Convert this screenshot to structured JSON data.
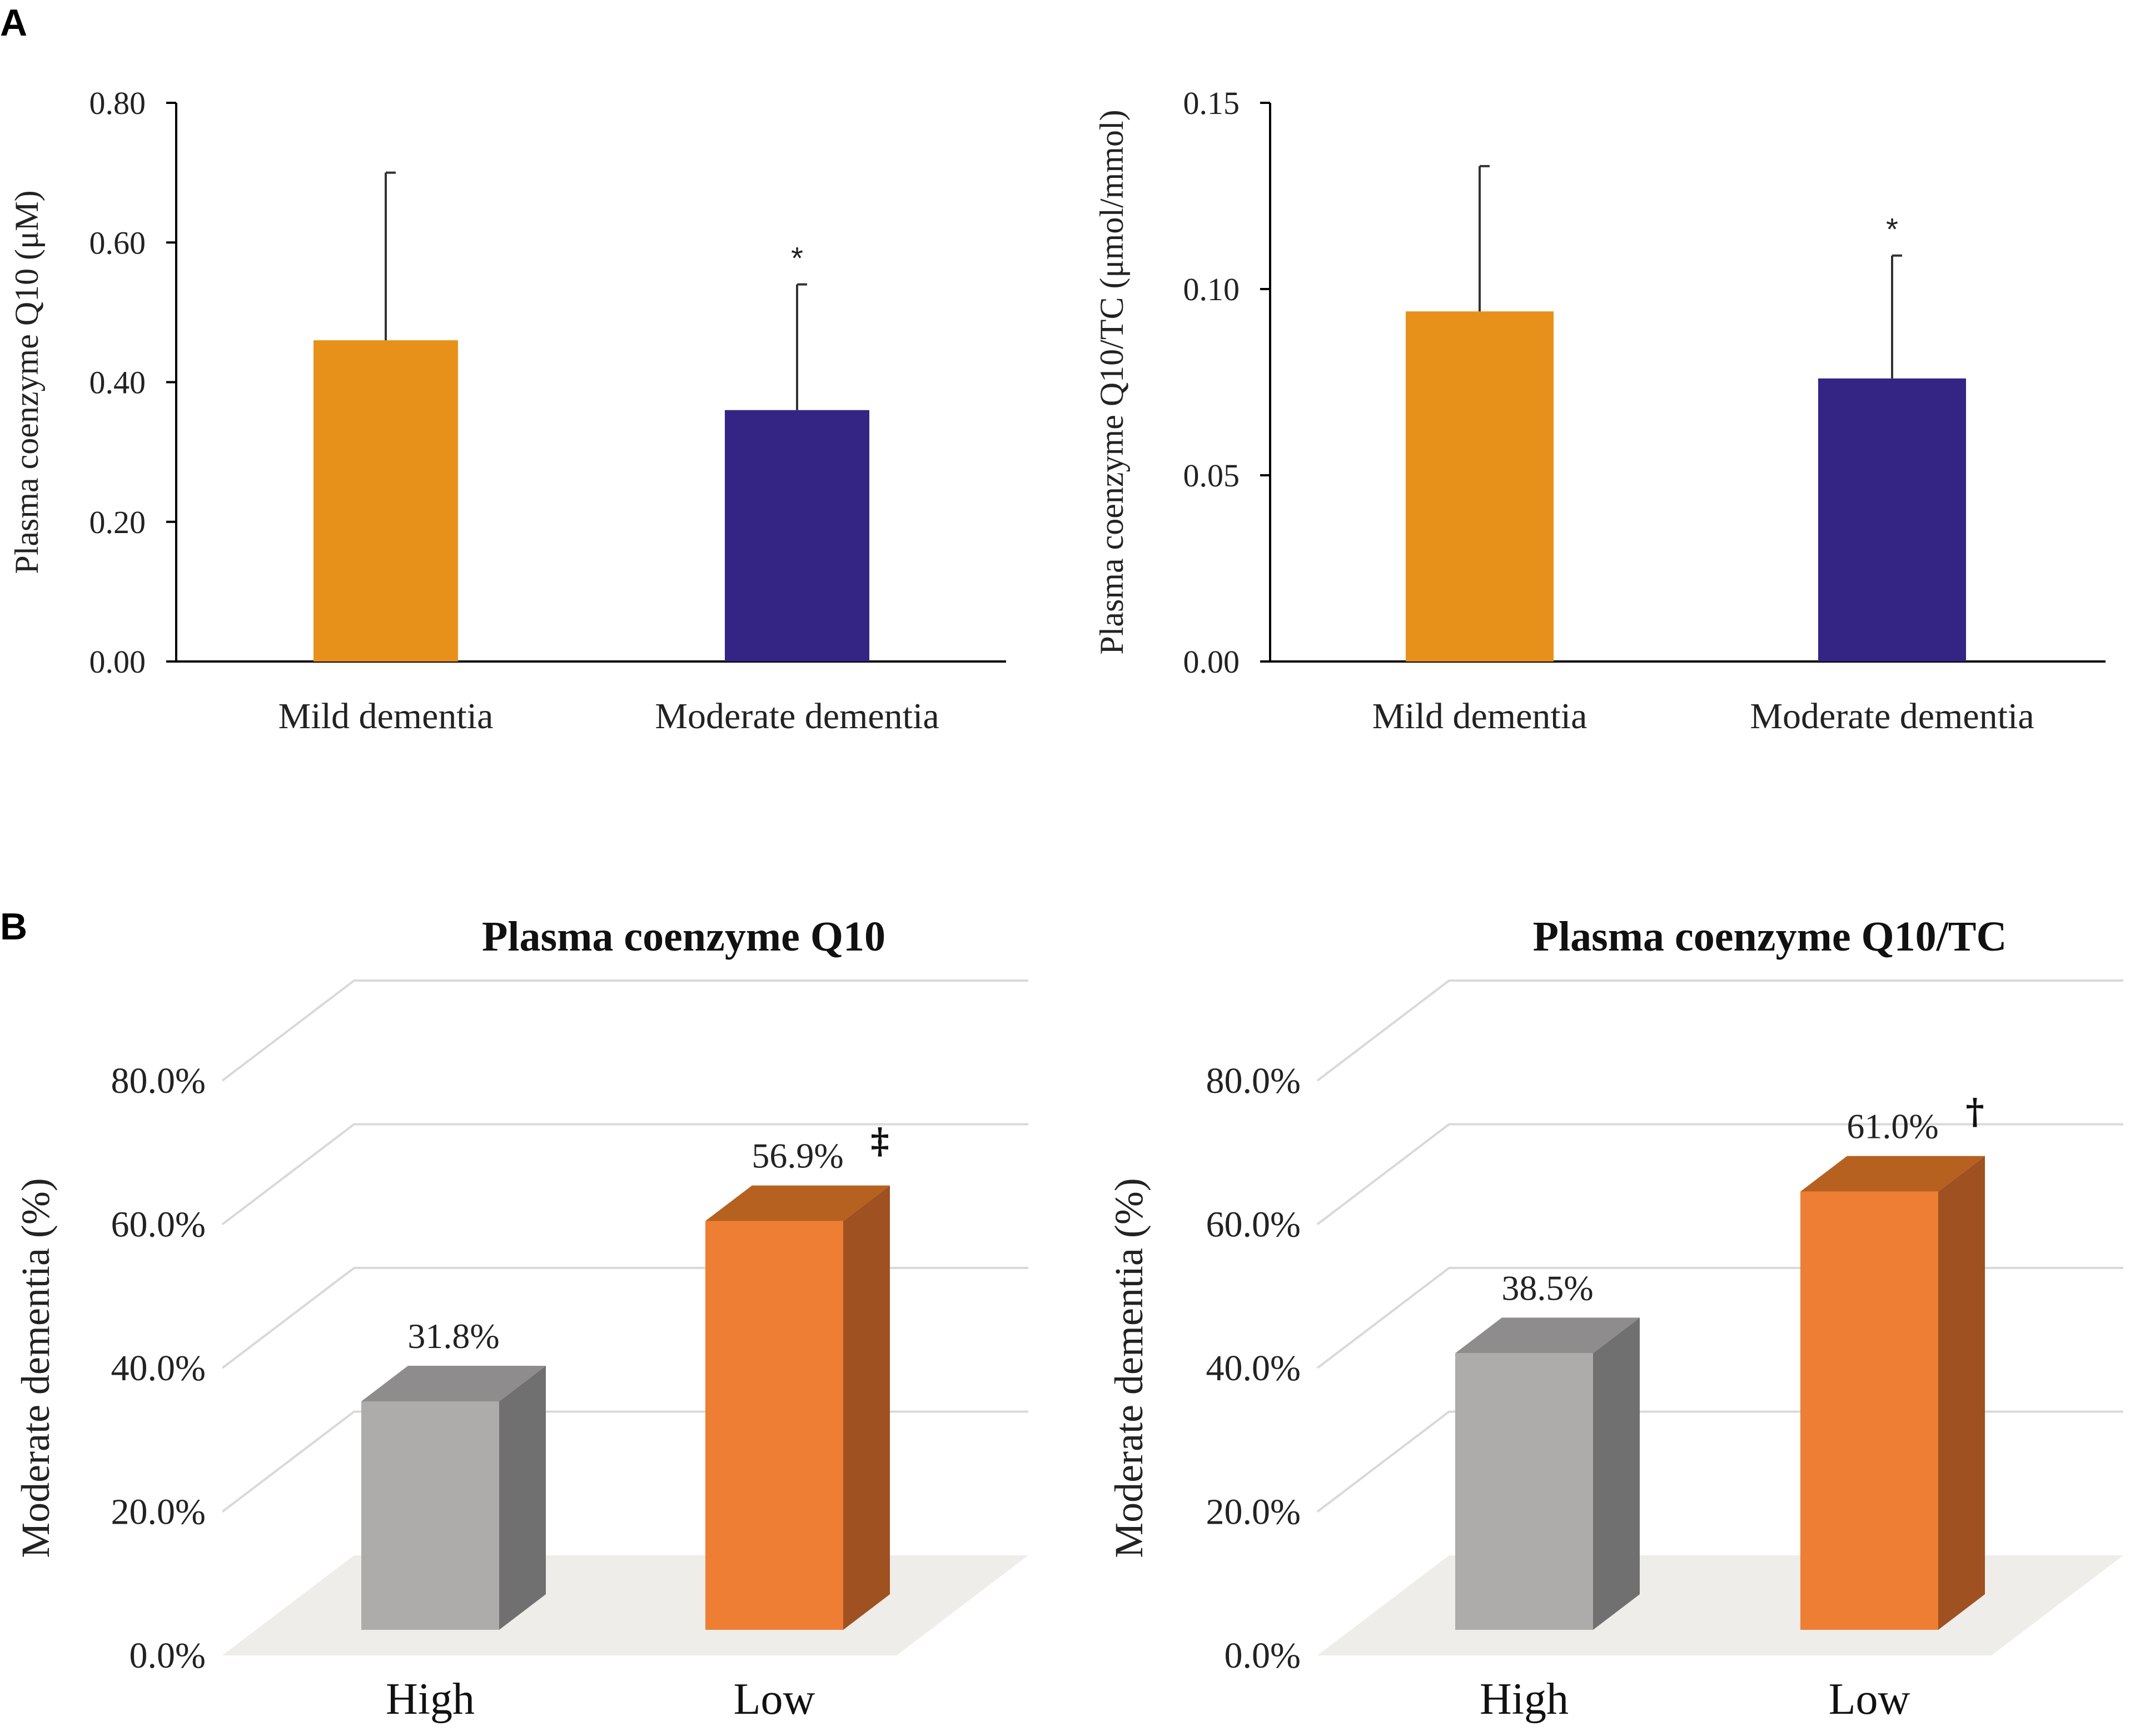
{
  "panels": {
    "a_label": "A",
    "b_label": "B"
  },
  "colors": {
    "mild": "#E8911A",
    "moderate": "#342584",
    "high_front": "#AEACAB",
    "high_side": "#717071",
    "high_top": "#8E8C8C",
    "low_front": "#EE7E33",
    "low_side": "#9F5121",
    "low_top": "#B6611F",
    "grid": "#D9D9D9",
    "floor": "#EEEDE9"
  },
  "chart_data": [
    {
      "type": "bar",
      "title": "",
      "xlabel": "",
      "ylabel": "Plasma coenzyme Q10 (μM)",
      "categories": [
        "Mild dementia",
        "Moderate dementia"
      ],
      "values": [
        0.46,
        0.36
      ],
      "errors": [
        0.24,
        0.18
      ],
      "significance": [
        "",
        "*"
      ],
      "ylim": [
        0,
        0.8
      ],
      "yticks": [
        "0.00",
        "0.20",
        "0.40",
        "0.60",
        "0.80"
      ]
    },
    {
      "type": "bar",
      "title": "",
      "xlabel": "",
      "ylabel": "Plasma coenzyme Q10/TC (μmol/mmol)",
      "categories": [
        "Mild dementia",
        "Moderate dementia"
      ],
      "values": [
        0.094,
        0.076
      ],
      "errors": [
        0.039,
        0.033
      ],
      "significance": [
        "",
        "*"
      ],
      "ylim": [
        0,
        0.15
      ],
      "yticks": [
        "0.00",
        "0.05",
        "0.10",
        "0.15"
      ]
    },
    {
      "type": "bar",
      "title": "Plasma coenzyme Q10",
      "xlabel": "",
      "ylabel": "Moderate dementia (%)",
      "categories": [
        "High",
        "Low"
      ],
      "values": [
        31.8,
        56.9
      ],
      "data_labels": [
        "31.8%",
        "56.9%"
      ],
      "significance": [
        "",
        "‡"
      ],
      "ylim": [
        0,
        80
      ],
      "yticks": [
        "0.0%",
        "20.0%",
        "40.0%",
        "60.0%",
        "80.0%"
      ]
    },
    {
      "type": "bar",
      "title": "Plasma coenzyme Q10/TC",
      "xlabel": "",
      "ylabel": "Moderate dementia (%)",
      "categories": [
        "High",
        "Low"
      ],
      "values": [
        38.5,
        61.0
      ],
      "data_labels": [
        "38.5%",
        "61.0%"
      ],
      "significance": [
        "",
        "†"
      ],
      "ylim": [
        0,
        80
      ],
      "yticks": [
        "0.0%",
        "20.0%",
        "40.0%",
        "60.0%",
        "80.0%"
      ]
    }
  ]
}
